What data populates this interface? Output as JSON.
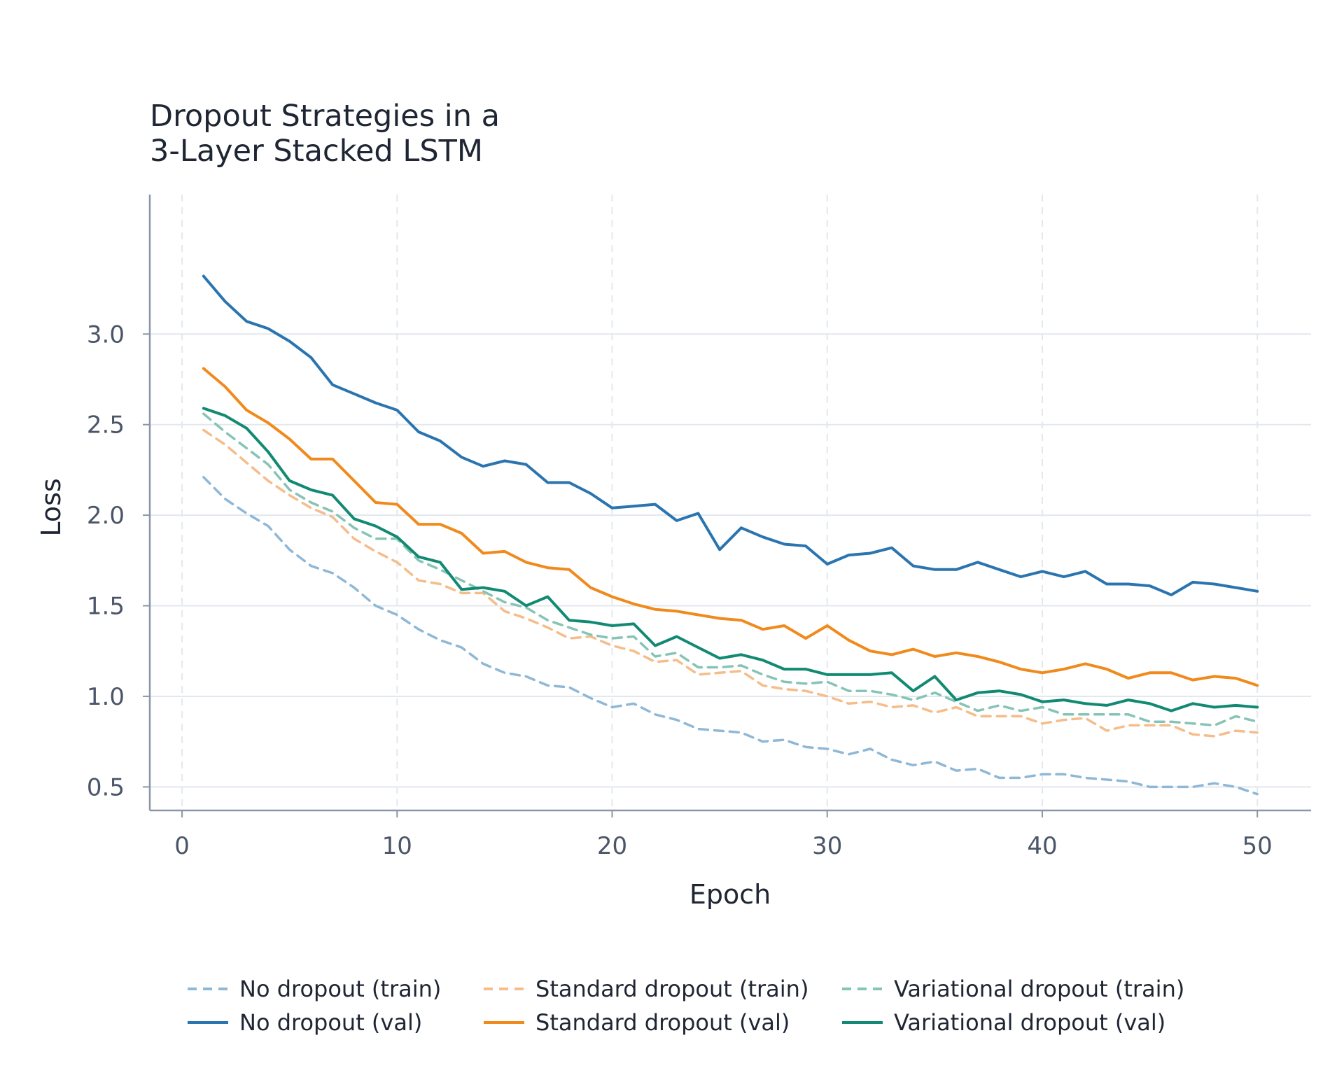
{
  "chart_data": {
    "type": "line",
    "title_lines": [
      "Dropout Strategies in a",
      "3-Layer Stacked LSTM"
    ],
    "xlabel": "Epoch",
    "ylabel": "Loss",
    "xlim": [
      -1.5,
      52.5
    ],
    "ylim": [
      0.37,
      3.77
    ],
    "xticks": [
      0,
      10,
      20,
      30,
      40,
      50
    ],
    "yticks": [
      0.5,
      1.0,
      1.5,
      2.0,
      2.5,
      3.0
    ],
    "xtick_labels": [
      "0",
      "10",
      "20",
      "30",
      "40",
      "50"
    ],
    "ytick_labels": [
      "0.5",
      "1.0",
      "1.5",
      "2.0",
      "2.5",
      "3.0"
    ],
    "grid": true,
    "legend_position": "bottom",
    "x": [
      1,
      2,
      3,
      4,
      5,
      6,
      7,
      8,
      9,
      10,
      11,
      12,
      13,
      14,
      15,
      16,
      17,
      18,
      19,
      20,
      21,
      22,
      23,
      24,
      25,
      26,
      27,
      28,
      29,
      30,
      31,
      32,
      33,
      34,
      35,
      36,
      37,
      38,
      39,
      40,
      41,
      42,
      43,
      44,
      45,
      46,
      47,
      48,
      49,
      50
    ],
    "series": [
      {
        "name": "No dropout (train)",
        "color": "#8fb8d6",
        "dash": true,
        "values": [
          2.21,
          2.09,
          2.01,
          1.94,
          1.81,
          1.72,
          1.68,
          1.6,
          1.5,
          1.45,
          1.37,
          1.31,
          1.27,
          1.18,
          1.13,
          1.11,
          1.06,
          1.05,
          0.99,
          0.94,
          0.96,
          0.9,
          0.87,
          0.82,
          0.81,
          0.8,
          0.75,
          0.76,
          0.72,
          0.71,
          0.68,
          0.71,
          0.65,
          0.62,
          0.64,
          0.59,
          0.6,
          0.55,
          0.55,
          0.57,
          0.57,
          0.55,
          0.54,
          0.53,
          0.5,
          0.5,
          0.5,
          0.52,
          0.5,
          0.46
        ]
      },
      {
        "name": "Standard dropout (train)",
        "color": "#f4bd8a",
        "dash": true,
        "values": [
          2.47,
          2.39,
          2.29,
          2.19,
          2.11,
          2.04,
          1.99,
          1.87,
          1.8,
          1.74,
          1.64,
          1.62,
          1.57,
          1.57,
          1.47,
          1.43,
          1.38,
          1.32,
          1.33,
          1.28,
          1.25,
          1.19,
          1.2,
          1.12,
          1.13,
          1.14,
          1.06,
          1.04,
          1.03,
          1.0,
          0.96,
          0.97,
          0.94,
          0.95,
          0.91,
          0.94,
          0.89,
          0.89,
          0.89,
          0.85,
          0.87,
          0.88,
          0.81,
          0.84,
          0.84,
          0.84,
          0.79,
          0.78,
          0.81,
          0.8
        ]
      },
      {
        "name": "Variational dropout (train)",
        "color": "#86c4b5",
        "dash": true,
        "values": [
          2.56,
          2.46,
          2.37,
          2.28,
          2.14,
          2.07,
          2.02,
          1.93,
          1.87,
          1.87,
          1.75,
          1.7,
          1.64,
          1.58,
          1.52,
          1.49,
          1.42,
          1.38,
          1.34,
          1.32,
          1.33,
          1.22,
          1.24,
          1.16,
          1.16,
          1.17,
          1.12,
          1.08,
          1.07,
          1.08,
          1.03,
          1.03,
          1.01,
          0.98,
          1.02,
          0.97,
          0.92,
          0.95,
          0.92,
          0.94,
          0.9,
          0.9,
          0.9,
          0.9,
          0.86,
          0.86,
          0.85,
          0.84,
          0.89,
          0.86
        ]
      },
      {
        "name": "No dropout (val)",
        "color": "#2a74b0",
        "dash": false,
        "values": [
          3.32,
          3.18,
          3.07,
          3.03,
          2.96,
          2.87,
          2.72,
          2.67,
          2.62,
          2.58,
          2.46,
          2.41,
          2.32,
          2.27,
          2.3,
          2.28,
          2.18,
          2.18,
          2.12,
          2.04,
          2.05,
          2.06,
          1.97,
          2.01,
          1.81,
          1.93,
          1.88,
          1.84,
          1.83,
          1.73,
          1.78,
          1.79,
          1.82,
          1.72,
          1.7,
          1.7,
          1.74,
          1.7,
          1.66,
          1.69,
          1.66,
          1.69,
          1.62,
          1.62,
          1.61,
          1.56,
          1.63,
          1.62,
          1.6,
          1.58
        ]
      },
      {
        "name": "Standard dropout (val)",
        "color": "#f08a1c",
        "dash": false,
        "values": [
          2.81,
          2.71,
          2.58,
          2.51,
          2.42,
          2.31,
          2.31,
          2.19,
          2.07,
          2.06,
          1.95,
          1.95,
          1.9,
          1.79,
          1.8,
          1.74,
          1.71,
          1.7,
          1.6,
          1.55,
          1.51,
          1.48,
          1.47,
          1.45,
          1.43,
          1.42,
          1.37,
          1.39,
          1.32,
          1.39,
          1.31,
          1.25,
          1.23,
          1.26,
          1.22,
          1.24,
          1.22,
          1.19,
          1.15,
          1.13,
          1.15,
          1.18,
          1.15,
          1.1,
          1.13,
          1.13,
          1.09,
          1.11,
          1.1,
          1.06
        ]
      },
      {
        "name": "Variational dropout (val)",
        "color": "#128a73",
        "dash": false,
        "values": [
          2.59,
          2.55,
          2.48,
          2.35,
          2.19,
          2.14,
          2.11,
          1.98,
          1.94,
          1.88,
          1.77,
          1.74,
          1.59,
          1.6,
          1.58,
          1.5,
          1.55,
          1.42,
          1.41,
          1.39,
          1.4,
          1.28,
          1.33,
          1.27,
          1.21,
          1.23,
          1.2,
          1.15,
          1.15,
          1.12,
          1.12,
          1.12,
          1.13,
          1.03,
          1.11,
          0.98,
          1.02,
          1.03,
          1.01,
          0.97,
          0.98,
          0.96,
          0.95,
          0.98,
          0.96,
          0.92,
          0.96,
          0.94,
          0.95,
          0.94
        ]
      }
    ]
  }
}
